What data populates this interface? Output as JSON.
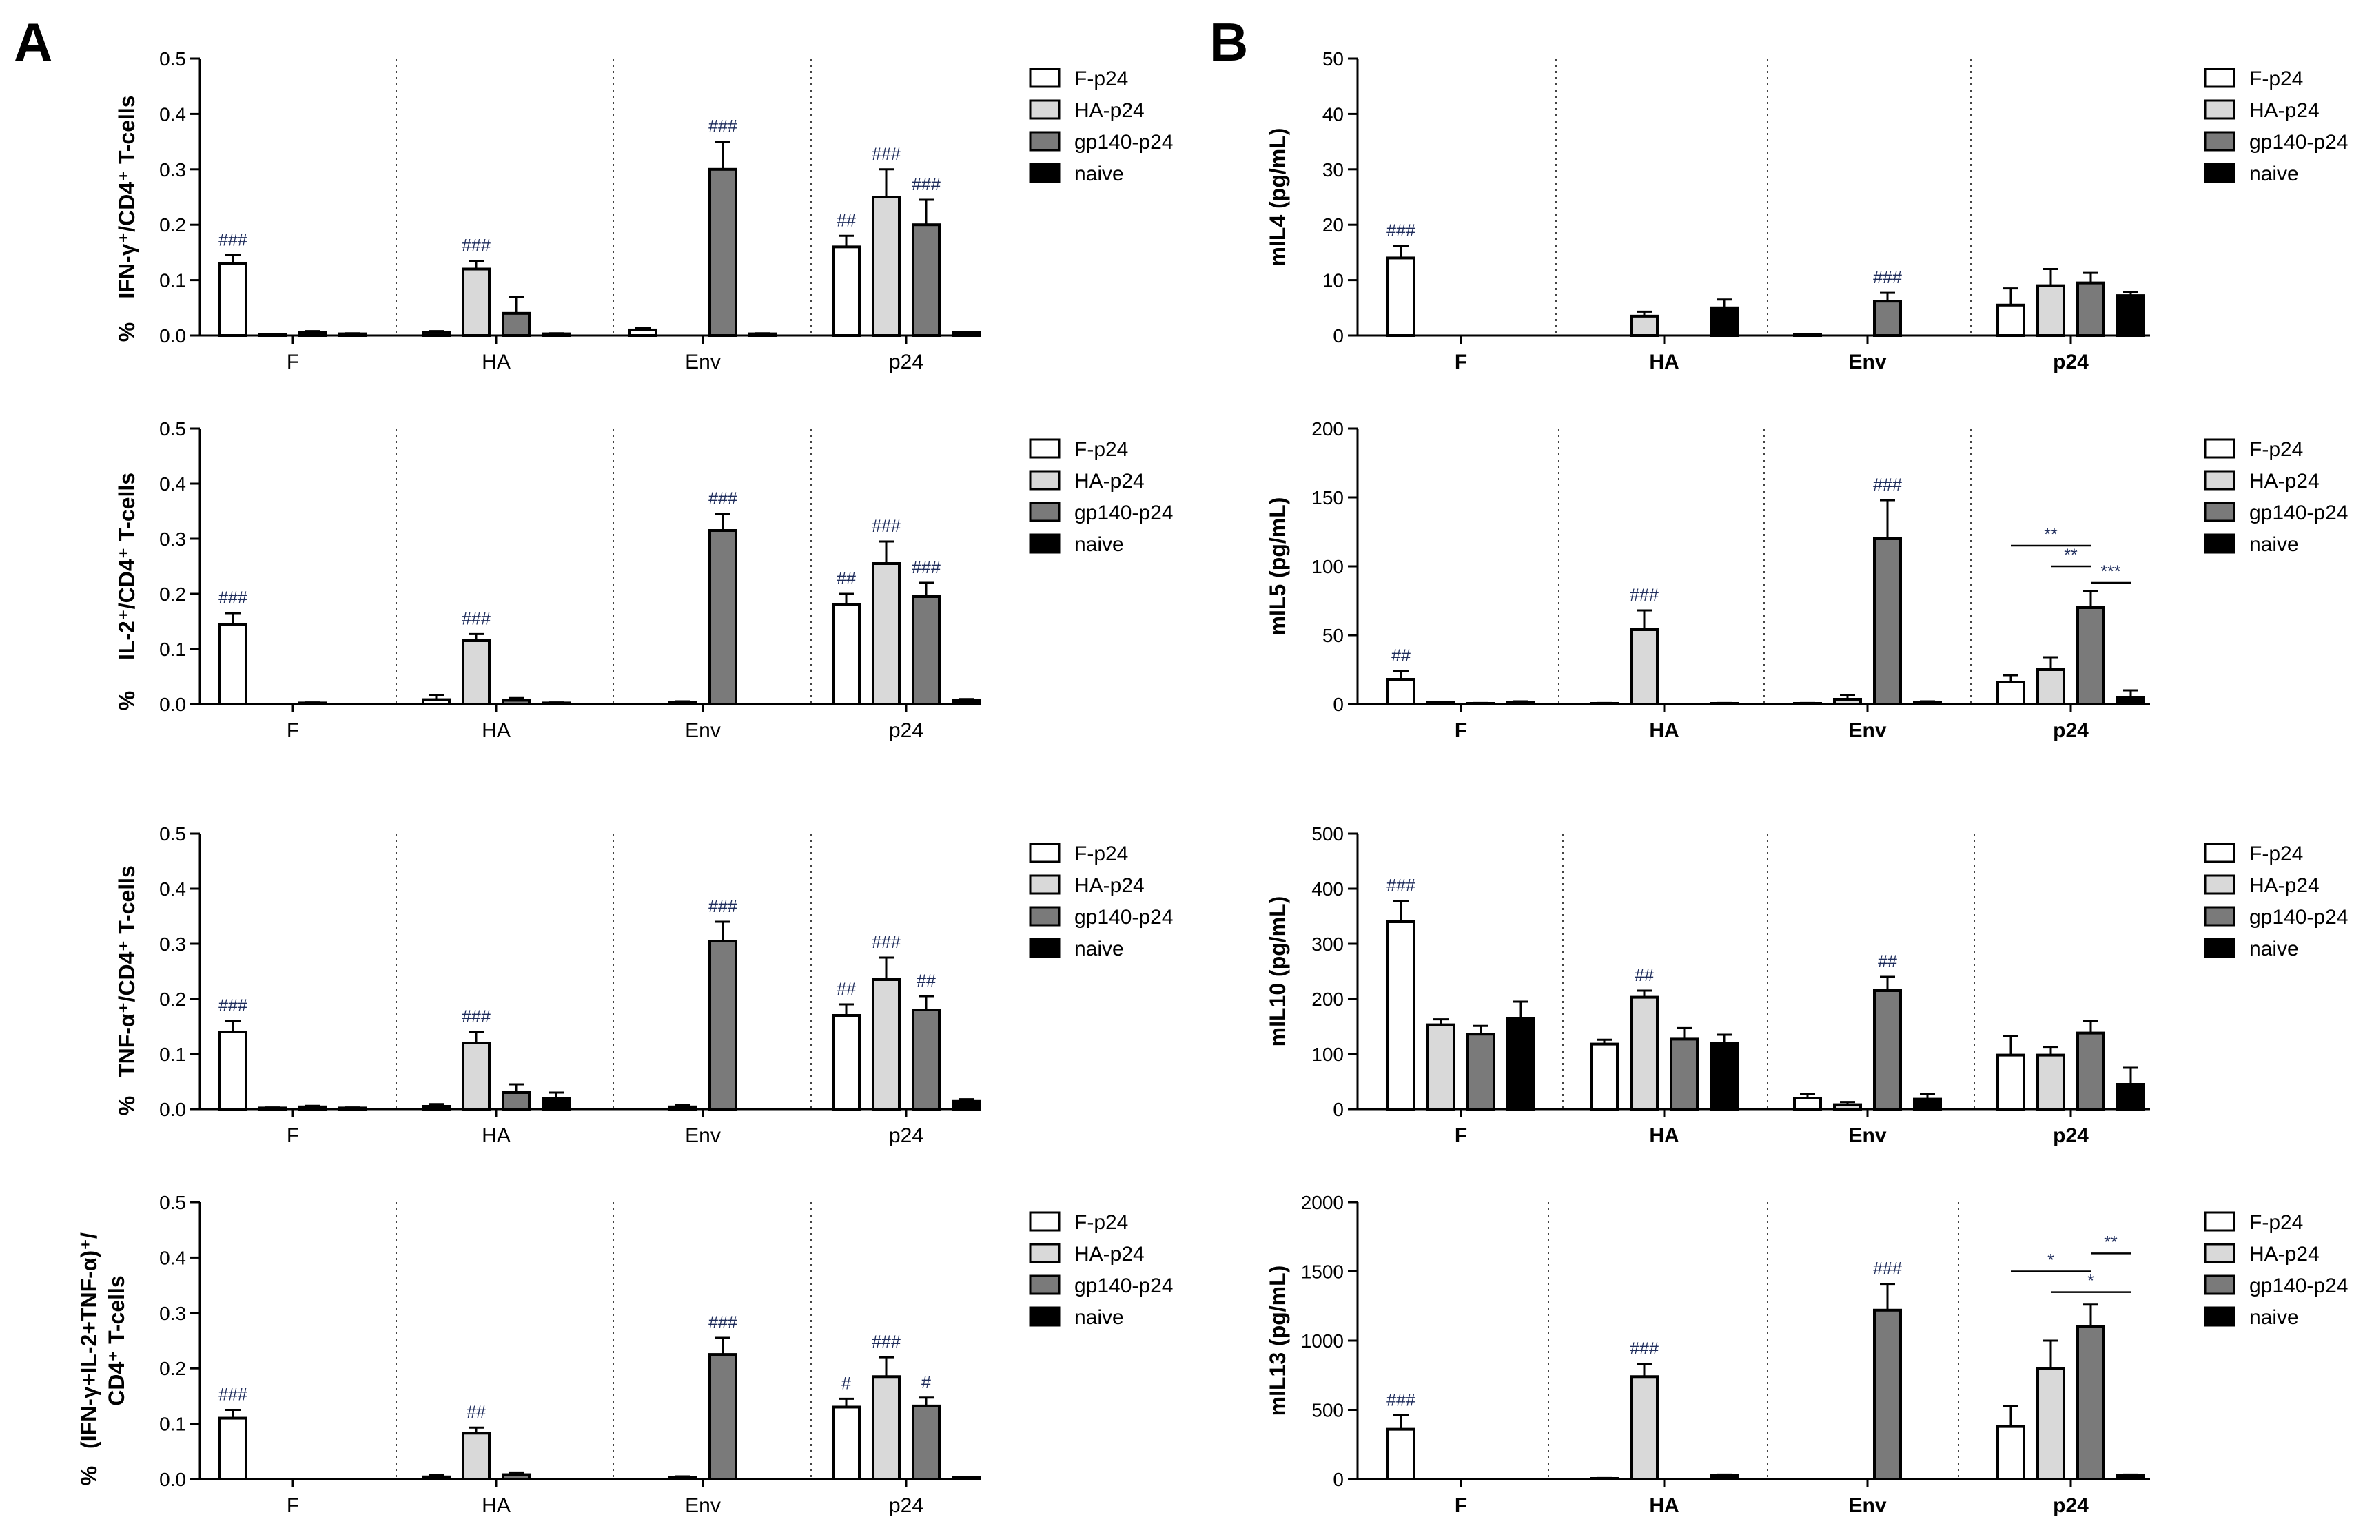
{
  "figure": {
    "panel_a": "A",
    "panel_b": "B"
  },
  "legend": [
    {
      "label": "F-p24",
      "color": "#ffffff"
    },
    {
      "label": "HA-p24",
      "color": "#d9d9d9"
    },
    {
      "label": "gp140-p24",
      "color": "#7a7a7a"
    },
    {
      "label": "naive",
      "color": "#000000"
    }
  ],
  "chart_data": [
    {
      "type": "bar",
      "panel": "A",
      "ylabel_main": "IFN-γ⁺/CD4⁺ T-cells",
      "ylabel_prefix": "%",
      "categories": [
        "F",
        "HA",
        "Env",
        "p24"
      ],
      "ylim": [
        0,
        0.5
      ],
      "yticks": [
        "0.0",
        "0.1",
        "0.2",
        "0.3",
        "0.4",
        "0.5"
      ],
      "series": [
        {
          "name": "F-p24",
          "values": [
            0.13,
            0.005,
            0.01,
            0.16
          ],
          "errors": [
            0.015,
            0.003,
            0.003,
            0.02
          ]
        },
        {
          "name": "HA-p24",
          "values": [
            0.002,
            0.12,
            0.0,
            0.25
          ],
          "errors": [
            0.001,
            0.015,
            0.0,
            0.05
          ]
        },
        {
          "name": "gp140-p24",
          "values": [
            0.005,
            0.04,
            0.3,
            0.2
          ],
          "errors": [
            0.003,
            0.03,
            0.05,
            0.045
          ]
        },
        {
          "name": "naive",
          "values": [
            0.003,
            0.003,
            0.003,
            0.005
          ],
          "errors": [
            0.001,
            0.001,
            0.001,
            0.001
          ]
        }
      ],
      "marks": [
        {
          "cat": 0,
          "series": 0,
          "text": "###"
        },
        {
          "cat": 1,
          "series": 1,
          "text": "###"
        },
        {
          "cat": 2,
          "series": 2,
          "text": "###"
        },
        {
          "cat": 3,
          "series": 0,
          "text": "##"
        },
        {
          "cat": 3,
          "series": 1,
          "text": "###"
        },
        {
          "cat": 3,
          "series": 2,
          "text": "###"
        }
      ]
    },
    {
      "type": "bar",
      "panel": "A",
      "ylabel_main": "IL-2⁺/CD4⁺ T-cells",
      "ylabel_prefix": "%",
      "categories": [
        "F",
        "HA",
        "Env",
        "p24"
      ],
      "ylim": [
        0,
        0.5
      ],
      "yticks": [
        "0.0",
        "0.1",
        "0.2",
        "0.3",
        "0.4",
        "0.5"
      ],
      "series": [
        {
          "name": "F-p24",
          "values": [
            0.145,
            0.008,
            0.0,
            0.18
          ],
          "errors": [
            0.02,
            0.008,
            0.0,
            0.02
          ]
        },
        {
          "name": "HA-p24",
          "values": [
            0.0,
            0.115,
            0.003,
            0.255
          ],
          "errors": [
            0.0,
            0.012,
            0.002,
            0.04
          ]
        },
        {
          "name": "gp140-p24",
          "values": [
            0.002,
            0.007,
            0.315,
            0.195
          ],
          "errors": [
            0.001,
            0.004,
            0.03,
            0.025
          ]
        },
        {
          "name": "naive",
          "values": [
            0.0,
            0.002,
            0.0,
            0.007
          ],
          "errors": [
            0.0,
            0.001,
            0.0,
            0.002
          ]
        }
      ],
      "marks": [
        {
          "cat": 0,
          "series": 0,
          "text": "###"
        },
        {
          "cat": 1,
          "series": 1,
          "text": "###"
        },
        {
          "cat": 2,
          "series": 2,
          "text": "###"
        },
        {
          "cat": 3,
          "series": 0,
          "text": "##"
        },
        {
          "cat": 3,
          "series": 1,
          "text": "###"
        },
        {
          "cat": 3,
          "series": 2,
          "text": "###"
        }
      ]
    },
    {
      "type": "bar",
      "panel": "A",
      "ylabel_main": "TNF-α⁺/CD4⁺ T-cells",
      "ylabel_prefix": "%",
      "categories": [
        "F",
        "HA",
        "Env",
        "p24"
      ],
      "ylim": [
        0,
        0.5
      ],
      "yticks": [
        "0.0",
        "0.1",
        "0.2",
        "0.3",
        "0.4",
        "0.5"
      ],
      "series": [
        {
          "name": "F-p24",
          "values": [
            0.14,
            0.005,
            0.0,
            0.17
          ],
          "errors": [
            0.02,
            0.004,
            0.0,
            0.02
          ]
        },
        {
          "name": "HA-p24",
          "values": [
            0.002,
            0.12,
            0.004,
            0.235
          ],
          "errors": [
            0.001,
            0.02,
            0.003,
            0.04
          ]
        },
        {
          "name": "gp140-p24",
          "values": [
            0.004,
            0.03,
            0.305,
            0.18
          ],
          "errors": [
            0.002,
            0.015,
            0.035,
            0.025
          ]
        },
        {
          "name": "naive",
          "values": [
            0.002,
            0.02,
            0.0,
            0.014
          ],
          "errors": [
            0.001,
            0.01,
            0.0,
            0.004
          ]
        }
      ],
      "marks": [
        {
          "cat": 0,
          "series": 0,
          "text": "###"
        },
        {
          "cat": 1,
          "series": 1,
          "text": "###"
        },
        {
          "cat": 2,
          "series": 2,
          "text": "###"
        },
        {
          "cat": 3,
          "series": 0,
          "text": "##"
        },
        {
          "cat": 3,
          "series": 1,
          "text": "###"
        },
        {
          "cat": 3,
          "series": 2,
          "text": "##"
        }
      ]
    },
    {
      "type": "bar",
      "panel": "A",
      "ylabel_main": "(IFN-γ+IL-2+TNF-α)⁺/",
      "ylabel_second": "CD4⁺ T-cells",
      "ylabel_prefix": "%",
      "categories": [
        "F",
        "HA",
        "Env",
        "p24"
      ],
      "ylim": [
        0,
        0.5
      ],
      "yticks": [
        "0.0",
        "0.1",
        "0.2",
        "0.3",
        "0.4",
        "0.5"
      ],
      "series": [
        {
          "name": "F-p24",
          "values": [
            0.11,
            0.004,
            0.0,
            0.13
          ],
          "errors": [
            0.015,
            0.003,
            0.0,
            0.015
          ]
        },
        {
          "name": "HA-p24",
          "values": [
            0.0,
            0.083,
            0.003,
            0.185
          ],
          "errors": [
            0.0,
            0.01,
            0.002,
            0.035
          ]
        },
        {
          "name": "gp140-p24",
          "values": [
            0.0,
            0.008,
            0.225,
            0.132
          ],
          "errors": [
            0.0,
            0.004,
            0.03,
            0.015
          ]
        },
        {
          "name": "naive",
          "values": [
            0.0,
            0.0,
            0.0,
            0.003
          ],
          "errors": [
            0.0,
            0.0,
            0.0,
            0.001
          ]
        }
      ],
      "marks": [
        {
          "cat": 0,
          "series": 0,
          "text": "###"
        },
        {
          "cat": 1,
          "series": 1,
          "text": "##"
        },
        {
          "cat": 2,
          "series": 2,
          "text": "###"
        },
        {
          "cat": 3,
          "series": 0,
          "text": "#"
        },
        {
          "cat": 3,
          "series": 1,
          "text": "###"
        },
        {
          "cat": 3,
          "series": 2,
          "text": "#"
        }
      ]
    },
    {
      "type": "bar",
      "panel": "B",
      "ylabel_main": "mIL4 (pg/mL)",
      "categories": [
        "F",
        "HA",
        "Env",
        "p24"
      ],
      "ylim": [
        0,
        50
      ],
      "yticks": [
        "0",
        "10",
        "20",
        "30",
        "40",
        "50"
      ],
      "series": [
        {
          "name": "F-p24",
          "values": [
            14,
            0,
            0.2,
            5.5
          ],
          "errors": [
            2.2,
            0,
            0.1,
            3
          ]
        },
        {
          "name": "HA-p24",
          "values": [
            0,
            3.5,
            0,
            9
          ],
          "errors": [
            0,
            0.8,
            0,
            3
          ]
        },
        {
          "name": "gp140-p24",
          "values": [
            0,
            0,
            6.2,
            9.5
          ],
          "errors": [
            0,
            0,
            1.5,
            1.8
          ]
        },
        {
          "name": "naive",
          "values": [
            0,
            5,
            0,
            7.2
          ],
          "errors": [
            0,
            1.5,
            0,
            0.6
          ]
        }
      ],
      "marks": [
        {
          "cat": 0,
          "series": 0,
          "text": "###"
        },
        {
          "cat": 2,
          "series": 2,
          "text": "###"
        }
      ]
    },
    {
      "type": "bar",
      "panel": "B",
      "ylabel_main": "mIL5 (pg/mL)",
      "categories": [
        "F",
        "HA",
        "Env",
        "p24"
      ],
      "ylim": [
        0,
        200
      ],
      "yticks": [
        "0",
        "50",
        "100",
        "150",
        "200"
      ],
      "series": [
        {
          "name": "F-p24",
          "values": [
            18,
            0.5,
            0.5,
            16
          ],
          "errors": [
            6,
            0.3,
            0.3,
            5
          ]
        },
        {
          "name": "HA-p24",
          "values": [
            1,
            54,
            3.5,
            25
          ],
          "errors": [
            0.5,
            14,
            3,
            9
          ]
        },
        {
          "name": "gp140-p24",
          "values": [
            0.5,
            0,
            120,
            70
          ],
          "errors": [
            0.3,
            0,
            28,
            12
          ]
        },
        {
          "name": "naive",
          "values": [
            1.5,
            0.5,
            1.5,
            5
          ],
          "errors": [
            0.5,
            0.3,
            0.5,
            5
          ]
        }
      ],
      "marks": [
        {
          "cat": 0,
          "series": 0,
          "text": "##"
        },
        {
          "cat": 1,
          "series": 1,
          "text": "###"
        },
        {
          "cat": 2,
          "series": 2,
          "text": "###"
        }
      ],
      "brackets": [
        {
          "cat": 3,
          "from": 0,
          "to": 2,
          "value": 115,
          "text": "**"
        },
        {
          "cat": 3,
          "from": 1,
          "to": 2,
          "value": 100,
          "text": "**"
        },
        {
          "cat": 3,
          "from": 2,
          "to": 3,
          "value": 88,
          "text": "***"
        }
      ]
    },
    {
      "type": "bar",
      "panel": "B",
      "ylabel_main": "mIL10 (pg/mL)",
      "categories": [
        "F",
        "HA",
        "Env",
        "p24"
      ],
      "ylim": [
        0,
        500
      ],
      "yticks": [
        "0",
        "100",
        "200",
        "300",
        "400",
        "500"
      ],
      "series": [
        {
          "name": "F-p24",
          "values": [
            340,
            118,
            20,
            98
          ]
        },
        {
          "name": "HA-p24",
          "values": [
            153,
            203,
            8,
            98
          ]
        },
        {
          "name": "gp140-p24",
          "values": [
            136,
            127,
            215,
            138
          ]
        },
        {
          "name": "naive",
          "values": [
            165,
            120,
            18,
            45
          ]
        }
      ],
      "errors_list": [
        [
          38,
          8,
          8,
          35
        ],
        [
          10,
          12,
          5,
          15
        ],
        [
          15,
          20,
          25,
          22
        ],
        [
          30,
          15,
          10,
          30
        ]
      ],
      "marks": [
        {
          "cat": 0,
          "series": 0,
          "text": "###"
        },
        {
          "cat": 1,
          "series": 1,
          "text": "##"
        },
        {
          "cat": 2,
          "series": 2,
          "text": "##"
        }
      ]
    },
    {
      "type": "bar",
      "panel": "B",
      "ylabel_main": "mIL13 (pg/mL)",
      "categories": [
        "F",
        "HA",
        "Env",
        "p24"
      ],
      "ylim": [
        0,
        2000
      ],
      "yticks": [
        "0",
        "500",
        "1000",
        "1500",
        "2000"
      ],
      "series": [
        {
          "name": "F-p24",
          "values": [
            360,
            5,
            0,
            380
          ],
          "errors": [
            100,
            3,
            0,
            150
          ]
        },
        {
          "name": "HA-p24",
          "values": [
            0,
            740,
            0,
            800
          ],
          "errors": [
            0,
            90,
            0,
            200
          ]
        },
        {
          "name": "gp140-p24",
          "values": [
            0,
            0,
            1220,
            1100
          ],
          "errors": [
            0,
            0,
            190,
            160
          ]
        },
        {
          "name": "naive",
          "values": [
            0,
            25,
            0,
            25
          ],
          "errors": [
            0,
            8,
            0,
            8
          ]
        }
      ],
      "marks": [
        {
          "cat": 0,
          "series": 0,
          "text": "###"
        },
        {
          "cat": 1,
          "series": 1,
          "text": "###"
        },
        {
          "cat": 2,
          "series": 2,
          "text": "###"
        }
      ],
      "brackets": [
        {
          "cat": 3,
          "from": 0,
          "to": 2,
          "value": 1500,
          "text": "*"
        },
        {
          "cat": 3,
          "from": 1,
          "to": 3,
          "value": 1350,
          "text": "*"
        },
        {
          "cat": 3,
          "from": 2,
          "to": 3,
          "value": 1630,
          "text": "**"
        }
      ]
    }
  ]
}
